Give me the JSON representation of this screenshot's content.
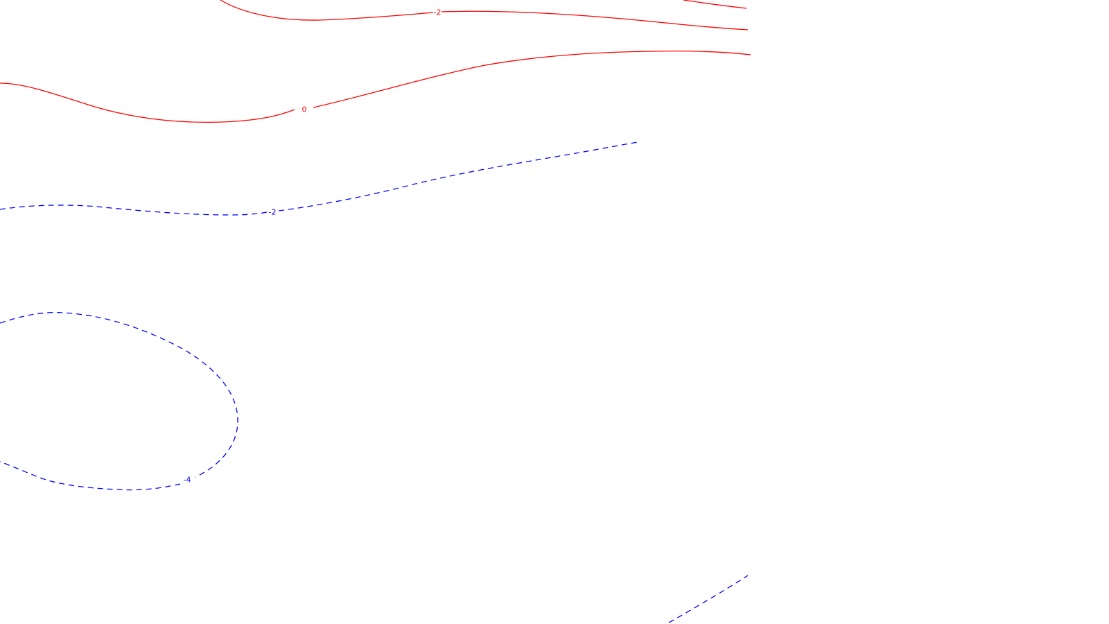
{
  "map": {
    "contours": [
      {
        "id": "c-upper",
        "label": "-2",
        "color": "#ff0000",
        "style": "solid"
      },
      {
        "id": "c-zero",
        "label": "0",
        "color": "#ff0000",
        "style": "solid"
      },
      {
        "id": "c-neg2",
        "label": "-2",
        "color": "#0000ff",
        "style": "dashed"
      },
      {
        "id": "c-neg4",
        "label": "-4",
        "color": "#0000ff",
        "style": "dashed"
      },
      {
        "id": "c-corner-top",
        "label": "",
        "color": "#ff0000",
        "style": "solid"
      },
      {
        "id": "c-corner-bottom",
        "label": "",
        "color": "#0000ff",
        "style": "dashed"
      }
    ]
  }
}
